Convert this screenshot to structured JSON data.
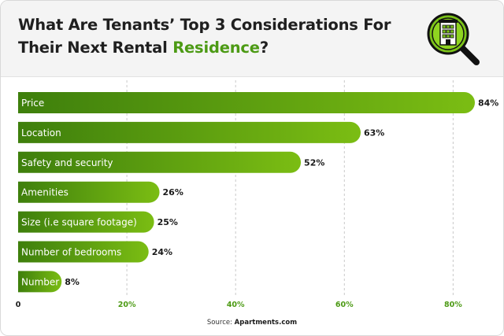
{
  "header": {
    "title_part1": "What Are Tenants’ Top 3 Considerations For Their Next Rental ",
    "title_accent": "Residence",
    "title_end": "?",
    "logo_icon": "building-magnifier-icon"
  },
  "colors": {
    "bar_dark": "#3e7f0c",
    "bar_light": "#7bbd13",
    "accent": "#4c9a14"
  },
  "chart_data": {
    "type": "bar",
    "orientation": "horizontal",
    "categories": [
      "Price",
      "Location",
      "Safety and security",
      "Amenities",
      "Size (i.e square footage)",
      "Number of bedrooms",
      "Number of baths"
    ],
    "values": [
      84,
      63,
      52,
      26,
      25,
      24,
      8
    ],
    "value_labels": [
      "84%",
      "63%",
      "52%",
      "26%",
      "25%",
      "24%",
      "8%"
    ],
    "xlim": [
      0,
      84
    ],
    "x_ticks": [
      0,
      20,
      40,
      60,
      80
    ],
    "x_tick_labels": [
      "0",
      "20%",
      "40%",
      "60%",
      "80%"
    ],
    "grid": "vertical dashed"
  },
  "source": {
    "prefix": "Source: ",
    "name": "Apartments.com"
  }
}
